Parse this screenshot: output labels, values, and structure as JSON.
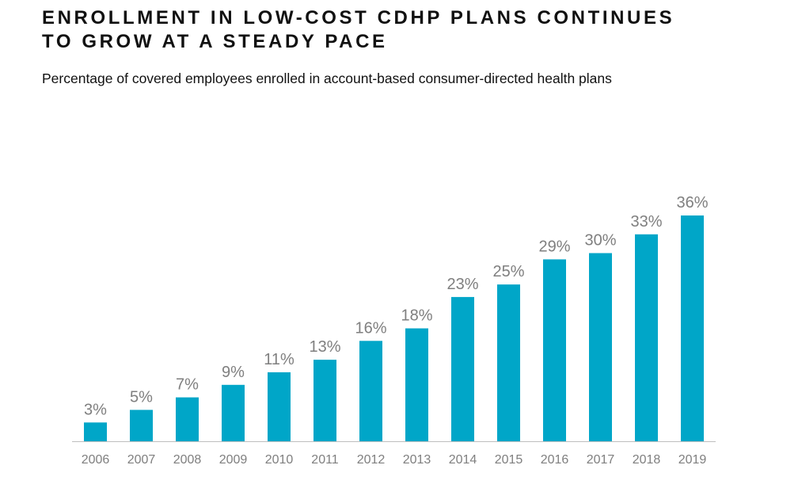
{
  "header": {
    "title_line1": "ENROLLMENT IN LOW-COST CDHP PLANS CONTINUES",
    "title_line2": "TO GROW AT A STEADY PACE",
    "subtitle": "Percentage of covered employees enrolled in account-based consumer-directed health plans"
  },
  "chart_data": {
    "type": "bar",
    "title": "ENROLLMENT IN LOW-COST CDHP PLANS CONTINUES TO GROW AT A STEADY PACE",
    "subtitle": "Percentage of covered employees enrolled in account-based consumer-directed health plans",
    "categories": [
      "2006",
      "2007",
      "2008",
      "2009",
      "2010",
      "2011",
      "2012",
      "2013",
      "2014",
      "2015",
      "2016",
      "2017",
      "2018",
      "2019"
    ],
    "values": [
      3,
      5,
      7,
      9,
      11,
      13,
      16,
      18,
      23,
      25,
      29,
      30,
      33,
      36
    ],
    "data_labels": [
      "3%",
      "5%",
      "7%",
      "9%",
      "11%",
      "13%",
      "16%",
      "18%",
      "23%",
      "25%",
      "29%",
      "30%",
      "33%",
      "36%"
    ],
    "unit": "%",
    "ylim": [
      0,
      36
    ],
    "grid": false,
    "legend": "none",
    "colors": {
      "bar": "#00A6C8",
      "label": "#7F7F7F",
      "axis": "#BFBFBF"
    }
  }
}
